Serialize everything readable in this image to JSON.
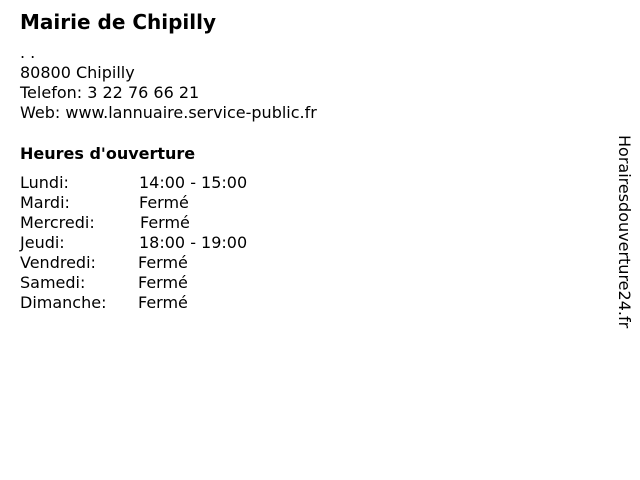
{
  "title": "Mairie de Chipilly",
  "address": {
    "street": ". .",
    "city": "80800 Chipilly",
    "phone": "Telefon: 3 22 76 66 21",
    "web": "Web: www.lannuaire.service-public.fr"
  },
  "hours": {
    "heading": "Heures d'ouverture",
    "rows": [
      {
        "day": "Lundi:",
        "time": "14:00 - 15:00"
      },
      {
        "day": "Mardi:",
        "time": "Fermé"
      },
      {
        "day": "Mercredi:",
        "time": "Fermé"
      },
      {
        "day": "Jeudi:",
        "time": "18:00 - 19:00"
      },
      {
        "day": "Vendredi:",
        "time": "Fermé"
      },
      {
        "day": "Samedi:",
        "time": "Fermé"
      },
      {
        "day": "Dimanche:",
        "time": "Fermé"
      }
    ]
  },
  "watermark": "Horairesdouverture24.fr"
}
